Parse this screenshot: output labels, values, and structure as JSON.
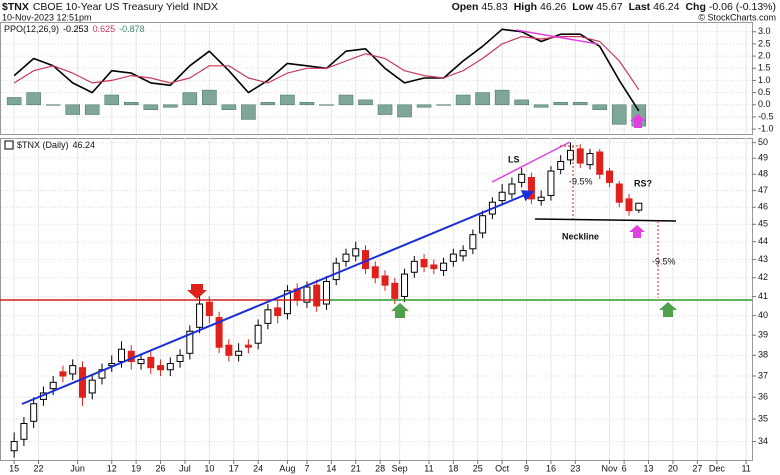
{
  "header": {
    "symbol": "$TNX",
    "name": "CBOE 10-Year US Treasury Yield",
    "exchange": "INDX",
    "timestamp": "10-Nov-2023 12:51pm",
    "credit": "© StockCharts.com",
    "quote": [
      {
        "label": "Open",
        "value": 45.83
      },
      {
        "label": "High",
        "value": 46.26
      },
      {
        "label": "Low",
        "value": 45.67
      },
      {
        "label": "Last",
        "value": 46.24
      },
      {
        "label": "Chg",
        "value": "-0.06 (-0.13%)"
      }
    ]
  },
  "chart_data": [
    {
      "type": "ppo",
      "title": "PPO(12,26,9)",
      "x": [
        0,
        4,
        8,
        12,
        16,
        20,
        24,
        28,
        32,
        36,
        40,
        44,
        48,
        52,
        56,
        60,
        64,
        68,
        72,
        76,
        80,
        84,
        88,
        92,
        96,
        100,
        104,
        108,
        112,
        116,
        120,
        124,
        128
      ],
      "series": [
        {
          "kind": "line",
          "color": "#000000",
          "label": -0.253,
          "values": [
            1.2,
            1.9,
            1.6,
            0.9,
            0.5,
            1.4,
            1.3,
            0.9,
            0.8,
            1.6,
            2.2,
            1.4,
            0.5,
            1.0,
            1.7,
            1.6,
            1.5,
            2.2,
            2.3,
            1.5,
            0.9,
            1.1,
            1.1,
            1.8,
            2.4,
            3.1,
            3.0,
            2.6,
            2.9,
            2.9,
            2.4,
            1.0,
            -0.253
          ]
        },
        {
          "kind": "line",
          "color": "#c8385a",
          "label": 0.625,
          "values": [
            0.9,
            1.4,
            1.6,
            1.3,
            0.9,
            1.0,
            1.2,
            1.1,
            0.9,
            1.1,
            1.6,
            1.6,
            1.1,
            0.9,
            1.3,
            1.5,
            1.5,
            1.8,
            2.1,
            1.9,
            1.4,
            1.2,
            1.1,
            1.4,
            1.9,
            2.5,
            2.8,
            2.7,
            2.8,
            2.8,
            2.6,
            1.8,
            0.625
          ]
        },
        {
          "kind": "histogram",
          "color": "#7fa797",
          "label": -0.878,
          "values": [
            0.3,
            0.5,
            0.0,
            -0.4,
            -0.4,
            0.4,
            0.1,
            -0.2,
            -0.1,
            0.5,
            0.6,
            -0.2,
            -0.6,
            0.1,
            0.4,
            0.1,
            0.0,
            0.4,
            0.2,
            -0.4,
            -0.5,
            -0.1,
            0.0,
            0.4,
            0.5,
            0.6,
            0.2,
            -0.1,
            0.1,
            0.1,
            -0.2,
            -0.8,
            -0.878
          ]
        }
      ],
      "xlim": [
        -2.9,
        151.2
      ],
      "ylim": [
        -1.2,
        3.4
      ],
      "yticks": [
        {
          "value": 3,
          "label": "3.0"
        },
        2.5,
        {
          "value": 2,
          "label": "2.0"
        },
        1.5,
        {
          "value": 1,
          "label": "1.0"
        },
        0.5,
        {
          "value": 0,
          "label": "0.0"
        },
        -0.5,
        {
          "value": -1,
          "label": "-1.0"
        }
      ],
      "grid": true
    },
    {
      "type": "candlestick",
      "title": "$TNX (Daily)",
      "last": 46.24,
      "up_color": "#000000",
      "down_color": "#e0201b",
      "x": [
        0,
        2,
        4,
        6,
        8,
        10,
        12,
        14,
        16,
        18,
        20,
        22,
        24,
        26,
        28,
        30,
        32,
        34,
        36,
        38,
        40,
        42,
        44,
        46,
        48,
        50,
        52,
        54,
        56,
        58,
        60,
        62,
        64,
        66,
        68,
        70,
        72,
        74,
        76,
        78,
        80,
        82,
        84,
        86,
        88,
        90,
        92,
        94,
        96,
        98,
        100,
        102,
        104,
        106,
        108,
        110,
        112,
        114,
        116,
        118,
        120,
        122,
        124,
        126,
        128
      ],
      "open": [
        33.6,
        34.1,
        34.9,
        35.9,
        36.4,
        37.2,
        37.1,
        37.4,
        36.2,
        36.9,
        37.5,
        37.7,
        38.2,
        37.6,
        37.9,
        37.5,
        37.3,
        37.7,
        38.1,
        39.4,
        40.7,
        39.9,
        38.5,
        38.0,
        38.5,
        38.6,
        39.6,
        40.4,
        40.1,
        41.4,
        40.7,
        41.6,
        40.6,
        41.9,
        42.9,
        43.2,
        43.5,
        42.6,
        42.1,
        41.7,
        41.0,
        42.3,
        43.0,
        42.7,
        42.4,
        42.9,
        43.2,
        43.6,
        44.5,
        45.6,
        46.4,
        46.8,
        47.5,
        47.8,
        46.4,
        46.7,
        48.3,
        48.9,
        49.6,
        48.6,
        49.4,
        48.2,
        47.4,
        46.5,
        45.83
      ],
      "high": [
        34.4,
        35.1,
        36.0,
        36.5,
        37.0,
        37.5,
        37.8,
        37.7,
        37.1,
        37.6,
        38.0,
        38.7,
        38.5,
        38.1,
        38.2,
        37.8,
        37.9,
        38.3,
        39.5,
        41.2,
        41.0,
        40.2,
        38.8,
        38.6,
        38.8,
        39.8,
        40.6,
        40.8,
        41.6,
        41.7,
        41.8,
        41.9,
        42.1,
        43.1,
        43.6,
        44.0,
        43.8,
        42.9,
        42.4,
        42.0,
        42.5,
        43.2,
        43.3,
        43.0,
        43.1,
        43.6,
        43.8,
        44.7,
        45.8,
        46.6,
        47.4,
        47.8,
        48.4,
        48.1,
        47.0,
        48.5,
        49.2,
        50.0,
        49.9,
        49.6,
        49.6,
        48.4,
        47.6,
        46.8,
        46.26
      ],
      "low": [
        33.3,
        33.8,
        34.6,
        35.6,
        36.1,
        36.7,
        36.8,
        35.6,
        35.9,
        36.6,
        37.2,
        37.4,
        37.3,
        37.3,
        37.1,
        37.0,
        37.0,
        37.4,
        37.8,
        39.1,
        39.6,
        38.1,
        37.7,
        37.7,
        38.1,
        38.3,
        39.3,
        39.6,
        39.8,
        40.5,
        40.4,
        40.2,
        40.3,
        41.6,
        42.6,
        42.9,
        42.2,
        41.7,
        41.3,
        40.6,
        40.7,
        42.0,
        42.3,
        42.2,
        42.1,
        42.6,
        42.9,
        43.3,
        44.2,
        45.3,
        46.1,
        46.5,
        47.2,
        46.2,
        46.1,
        46.4,
        48.0,
        48.6,
        48.4,
        48.3,
        47.7,
        47.2,
        46.0,
        45.5,
        45.67
      ],
      "close": [
        34.0,
        34.8,
        35.7,
        36.2,
        36.7,
        37.0,
        37.5,
        36.0,
        36.8,
        37.3,
        37.6,
        38.3,
        37.7,
        37.8,
        37.4,
        37.3,
        37.6,
        38.0,
        39.2,
        40.6,
        40.0,
        38.4,
        38.0,
        38.2,
        38.4,
        39.5,
        40.3,
        40.0,
        41.3,
        40.8,
        41.5,
        40.5,
        41.8,
        42.8,
        43.3,
        43.6,
        42.5,
        42.0,
        41.6,
        40.9,
        42.2,
        42.9,
        42.6,
        42.5,
        42.8,
        43.3,
        43.5,
        44.4,
        45.5,
        46.3,
        46.9,
        47.4,
        48.0,
        46.5,
        46.6,
        48.2,
        48.8,
        49.5,
        48.7,
        49.3,
        48.0,
        47.5,
        46.3,
        45.8,
        46.24
      ],
      "xlim": [
        -2.9,
        151.2
      ],
      "xticks": [
        {
          "value": 0,
          "label": "15"
        },
        {
          "value": 5,
          "label": "22"
        },
        {
          "value": 13,
          "label": "Jun"
        },
        {
          "value": 20,
          "label": "12"
        },
        {
          "value": 25,
          "label": "19"
        },
        {
          "value": 30,
          "label": "26"
        },
        {
          "value": 35,
          "label": "Jul"
        },
        {
          "value": 40,
          "label": "10"
        },
        {
          "value": 45,
          "label": "17"
        },
        {
          "value": 50,
          "label": "24"
        },
        {
          "value": 56,
          "label": "Aug"
        },
        {
          "value": 60,
          "label": "7"
        },
        {
          "value": 65,
          "label": "14"
        },
        {
          "value": 70,
          "label": "21"
        },
        {
          "value": 75,
          "label": "28"
        },
        {
          "value": 79,
          "label": "Sep"
        },
        {
          "value": 85,
          "label": "11"
        },
        {
          "value": 90,
          "label": "18"
        },
        {
          "value": 95,
          "label": "25"
        },
        {
          "value": 100,
          "label": "Oct"
        },
        {
          "value": 105,
          "label": "9"
        },
        {
          "value": 110,
          "label": "16"
        },
        {
          "value": 115,
          "label": "23"
        },
        {
          "value": 122,
          "label": "Nov"
        },
        {
          "value": 125,
          "label": "6"
        },
        {
          "value": 130,
          "label": "13"
        },
        {
          "value": 135,
          "label": "20"
        },
        {
          "value": 140,
          "label": "27"
        },
        {
          "value": 144,
          "label": "Dec"
        },
        {
          "value": 150,
          "label": "11"
        }
      ],
      "ylim": [
        33.2,
        50.3
      ],
      "yticks": [
        34,
        35,
        36,
        37,
        38,
        39,
        40,
        41,
        42,
        43,
        44,
        45,
        46,
        47,
        48,
        49,
        50
      ],
      "log": true,
      "grid": true,
      "annotations": [
        "LS",
        "RS?",
        "Neckline",
        "-9.5%",
        "-9.5%"
      ]
    }
  ]
}
